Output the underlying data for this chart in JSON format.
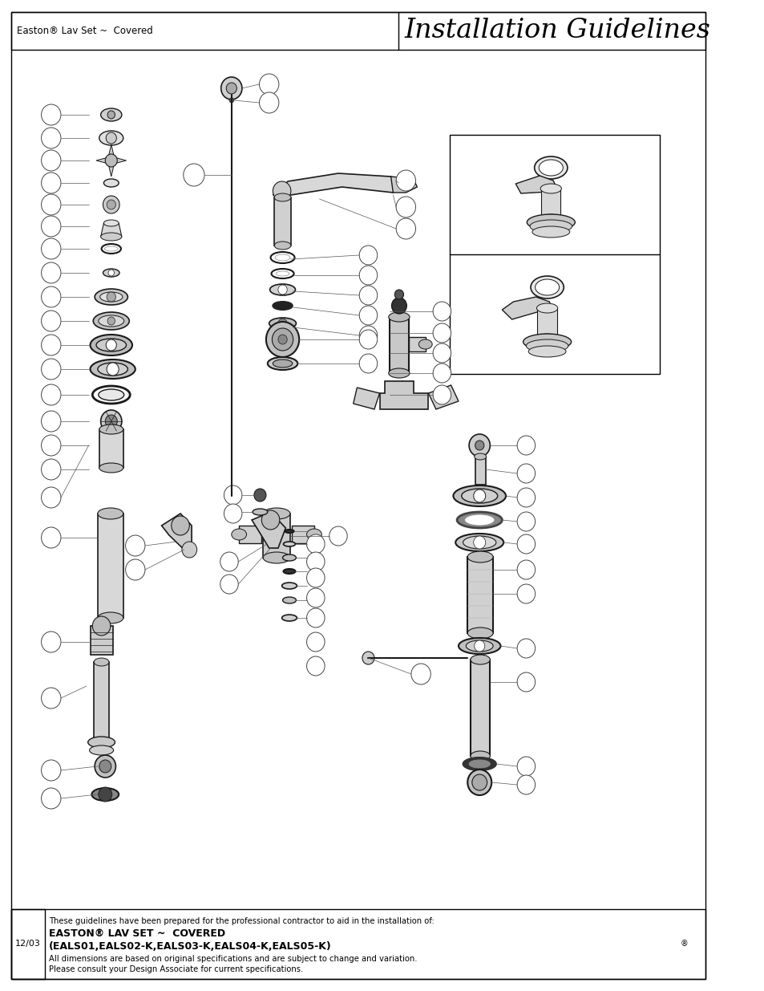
{
  "title_left": "Easton® Lav Set ~  Covered",
  "title_right": "Installation Guidelines",
  "footer_date": "12/03",
  "footer_bold1": "EASTON® LAV SET ~  COVERED",
  "footer_bold2": "(EALS01,EALS02-K,EALS03-K,EALS04-K,EALS05-K)",
  "footer_text1": "These guidelines have been prepared for the professional contractor to aid in the installation of:",
  "footer_text2": "All dimensions are based on original specifications and are subject to change and variation.",
  "footer_text3": "Please consult your Design Associate for current specifications.",
  "bg_color": "#ffffff",
  "border_color": "#000000",
  "text_color": "#000000"
}
